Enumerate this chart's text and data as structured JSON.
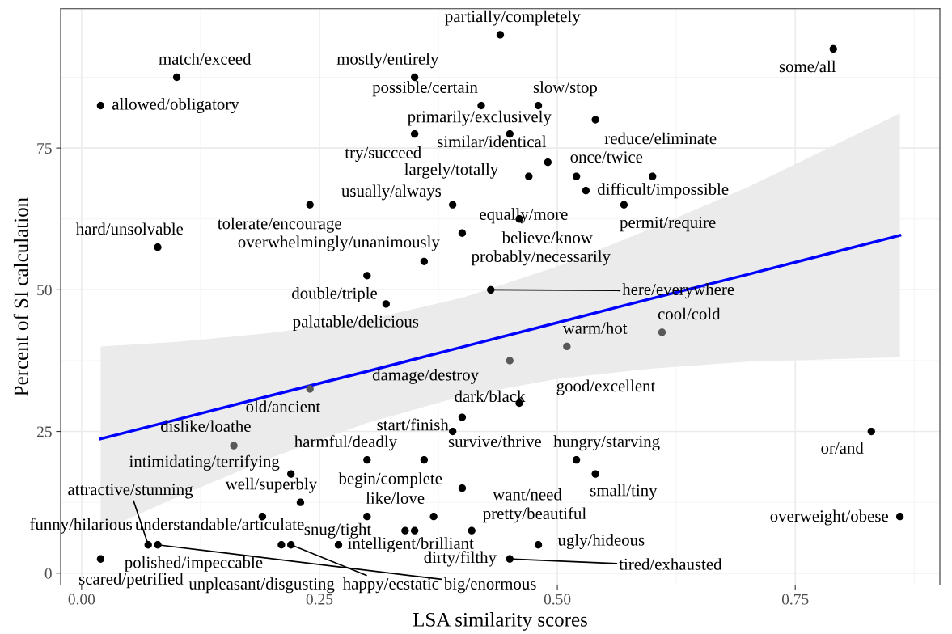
{
  "chart_data": {
    "type": "scatter",
    "xlabel": "LSA similarity scores",
    "ylabel": "Percent of SI calculation",
    "xlim": [
      -0.022,
      0.902
    ],
    "ylim": [
      -2.1,
      99.6
    ],
    "xticks": [
      {
        "value": 0,
        "label": "0.00"
      },
      {
        "value": 0.25,
        "label": "0.25"
      },
      {
        "value": 0.5,
        "label": "0.50"
      },
      {
        "value": 0.75,
        "label": "0.75"
      }
    ],
    "yticks": [
      0,
      25,
      50,
      75
    ],
    "grid": true,
    "legend": false,
    "marker": "circle",
    "series": [
      {
        "type": "scatter",
        "color": "#000000",
        "x": [
          0.44,
          0.79,
          0.1,
          0.35,
          0.02,
          0.42,
          0.48,
          0.54,
          0.45,
          0.35,
          0.49,
          0.47,
          0.6,
          0.52,
          0.53,
          0.57,
          0.39,
          0.24,
          0.46,
          0.08,
          0.36,
          0.4,
          0.3,
          0.32,
          0.43,
          0.46,
          0.4,
          0.39,
          0.83,
          0.3,
          0.36,
          0.52,
          0.22,
          0.54,
          0.4,
          0.23,
          0.37,
          0.19,
          0.3,
          0.41,
          0.86,
          0.34,
          0.35,
          0.48,
          0.45,
          0.07,
          0.08,
          0.21,
          0.22,
          0.27,
          0.02
        ],
        "values": [
          95,
          92.5,
          87.5,
          87.5,
          82.5,
          82.5,
          82.5,
          80,
          77.5,
          77.5,
          72.5,
          70,
          70,
          70,
          67.5,
          65,
          65,
          65,
          62.5,
          57.5,
          55,
          60,
          52.5,
          47.5,
          50,
          30,
          27.5,
          25,
          25,
          20,
          20,
          20,
          17.5,
          17.5,
          15,
          12.5,
          10,
          10,
          10,
          7.5,
          10,
          7.5,
          7.5,
          5,
          2.5,
          5,
          5,
          5,
          5,
          5,
          2.5
        ]
      },
      {
        "type": "scatter",
        "color": "#595959",
        "x": [
          0.61,
          0.51,
          0.45,
          0.24,
          0.16
        ],
        "values": [
          42.5,
          40,
          37.5,
          32.5,
          22.5
        ]
      },
      {
        "type": "line",
        "marker": "none",
        "color": "#0000ff",
        "x": [
          0.02,
          0.1,
          0.2,
          0.3,
          0.4,
          0.5,
          0.6,
          0.7,
          0.86
        ],
        "values": [
          23.7,
          27.1,
          31.4,
          35.6,
          39.9,
          44.2,
          48.5,
          52.7,
          59.6
        ],
        "lower": [
          7.4,
          13.4,
          20.4,
          26.5,
          31.2,
          34.3,
          36.1,
          37.3,
          38.1
        ],
        "upper": [
          40.0,
          40.8,
          42.4,
          44.7,
          48.6,
          54.1,
          60.9,
          68.1,
          81.1
        ]
      }
    ],
    "annotations": [
      {
        "text": "partially/completely",
        "x": 0.44,
        "y": 95
      },
      {
        "text": "some/all",
        "x": 0.79,
        "y": 92.5
      },
      {
        "text": "match/exceed",
        "x": 0.1,
        "y": 87.5
      },
      {
        "text": "mostly/entirely",
        "x": 0.35,
        "y": 87.5
      },
      {
        "text": "allowed/obligatory",
        "x": 0.02,
        "y": 82.5
      },
      {
        "text": "possible/certain",
        "x": 0.42,
        "y": 82.5
      },
      {
        "text": "slow/stop",
        "x": 0.48,
        "y": 82.5
      },
      {
        "text": "reduce/eliminate",
        "x": 0.54,
        "y": 80
      },
      {
        "text": "primarily/exclusively",
        "x": 0.45,
        "y": 77.5
      },
      {
        "text": "try/succeed",
        "x": 0.35,
        "y": 77.5
      },
      {
        "text": "similar/identical",
        "x": 0.49,
        "y": 72.5
      },
      {
        "text": "largely/totally",
        "x": 0.47,
        "y": 70
      },
      {
        "text": "once/twice",
        "x": 0.6,
        "y": 70
      },
      {
        "text": "difficult/impossible",
        "x": 0.53,
        "y": 67.5
      },
      {
        "text": "permit/require",
        "x": 0.57,
        "y": 65
      },
      {
        "text": "usually/always",
        "x": 0.39,
        "y": 65
      },
      {
        "text": "tolerate/encourage",
        "x": 0.24,
        "y": 65
      },
      {
        "text": "equally/more",
        "x": 0.52,
        "y": 70
      },
      {
        "text": "believe/know",
        "x": 0.46,
        "y": 62.5
      },
      {
        "text": "hard/unsolvable",
        "x": 0.08,
        "y": 57.5
      },
      {
        "text": "overwhelmingly/unanimously",
        "x": 0.36,
        "y": 55
      },
      {
        "text": "probably/necessarily",
        "x": 0.4,
        "y": 60
      },
      {
        "text": "double/triple",
        "x": 0.3,
        "y": 52.5
      },
      {
        "text": "palatable/delicious",
        "x": 0.32,
        "y": 47.5
      },
      {
        "text": "here/everywhere",
        "x": 0.43,
        "y": 50
      },
      {
        "text": "cool/cold",
        "x": 0.61,
        "y": 42.5
      },
      {
        "text": "warm/hot",
        "x": 0.51,
        "y": 40
      },
      {
        "text": "damage/destroy",
        "x": 0.45,
        "y": 37.5
      },
      {
        "text": "old/ancient",
        "x": 0.24,
        "y": 32.5
      },
      {
        "text": "good/excellent",
        "x": 0.46,
        "y": 30
      },
      {
        "text": "start/finish",
        "x": 0.4,
        "y": 27.5
      },
      {
        "text": "dark/black",
        "x": 0.39,
        "y": 25
      },
      {
        "text": "or/and",
        "x": 0.83,
        "y": 25
      },
      {
        "text": "dislike/loathe",
        "x": 0.16,
        "y": 22.5
      },
      {
        "text": "harmful/deadly",
        "x": 0.3,
        "y": 20
      },
      {
        "text": "survive/thrive",
        "x": 0.36,
        "y": 20
      },
      {
        "text": "hungry/starving",
        "x": 0.52,
        "y": 20
      },
      {
        "text": "intimidating/terrifying",
        "x": 0.22,
        "y": 17.5
      },
      {
        "text": "begin/complete",
        "x": 0.36,
        "y": 20
      },
      {
        "text": "small/tiny",
        "x": 0.54,
        "y": 17.5
      },
      {
        "text": "want/need",
        "x": 0.4,
        "y": 15
      },
      {
        "text": "well/superbly",
        "x": 0.23,
        "y": 12.5
      },
      {
        "text": "like/love",
        "x": 0.37,
        "y": 10
      },
      {
        "text": "pretty/beautiful",
        "x": 0.41,
        "y": 7.5
      },
      {
        "text": "overweight/obese",
        "x": 0.86,
        "y": 10
      },
      {
        "text": "snug/tight",
        "x": 0.34,
        "y": 7.5
      },
      {
        "text": "dirty/filthy",
        "x": 0.35,
        "y": 7.5
      },
      {
        "text": "ugly/hideous",
        "x": 0.48,
        "y": 5
      },
      {
        "text": "tired/exhausted",
        "x": 0.45,
        "y": 2.5
      },
      {
        "text": "attractive/stunning",
        "x": 0.07,
        "y": 5
      },
      {
        "text": "funny/hilarious",
        "x": 0.07,
        "y": 5
      },
      {
        "text": "understandable/articulate",
        "x": 0.21,
        "y": 5
      },
      {
        "text": "polished/impeccable",
        "x": 0.08,
        "y": 5
      },
      {
        "text": "unpleasant/disgusting",
        "x": 0.22,
        "y": 5
      },
      {
        "text": "big/enormous",
        "x": 0.08,
        "y": 5
      },
      {
        "text": "happy/ecstatic",
        "x": 0.22,
        "y": 5
      },
      {
        "text": "intelligent/brilliant",
        "x": 0.27,
        "y": 5
      },
      {
        "text": "scared/petrified",
        "x": 0.02,
        "y": 2.5
      }
    ]
  }
}
